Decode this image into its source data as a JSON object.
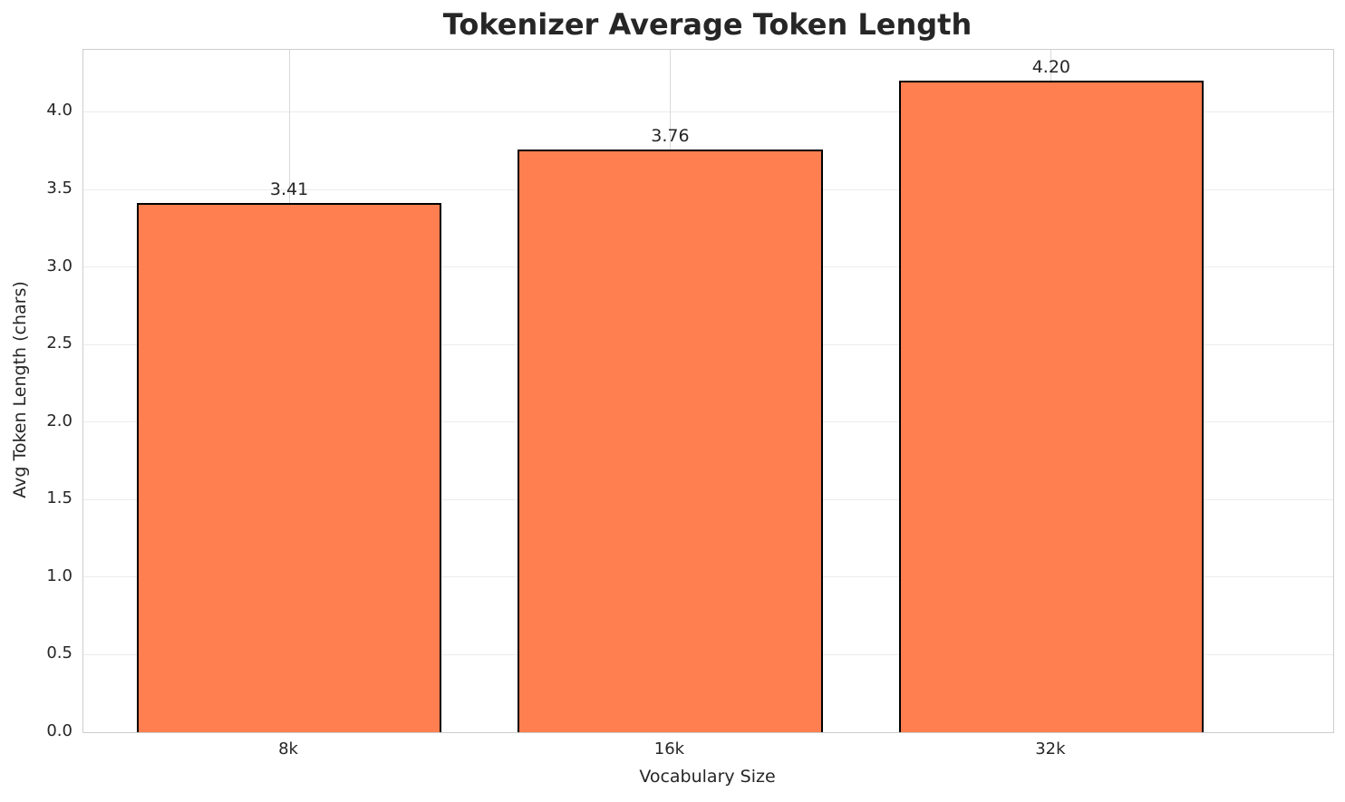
{
  "chart_data": {
    "type": "bar",
    "title": "Tokenizer Average Token Length",
    "xlabel": "Vocabulary Size",
    "ylabel": "Avg Token Length (chars)",
    "categories": [
      "8k",
      "16k",
      "32k"
    ],
    "values": [
      3.41,
      3.76,
      4.2
    ],
    "value_labels": [
      "3.41",
      "3.76",
      "4.20"
    ],
    "ylim": [
      0,
      4.4
    ],
    "yticks": [
      0.0,
      0.5,
      1.0,
      1.5,
      2.0,
      2.5,
      3.0,
      3.5,
      4.0
    ],
    "ytick_labels": [
      "0.0",
      "0.5",
      "1.0",
      "1.5",
      "2.0",
      "2.5",
      "3.0",
      "3.5",
      "4.0"
    ],
    "grid": true,
    "legend": "none",
    "bar_color": "#FF7F50",
    "bar_edge_color": "#000000"
  },
  "colors": {
    "background": "#ffffff",
    "text": "#262626",
    "spine": "#cdcdcd",
    "grid_horizontal": "#ececec",
    "grid_vertical": "#d9d9d9"
  }
}
